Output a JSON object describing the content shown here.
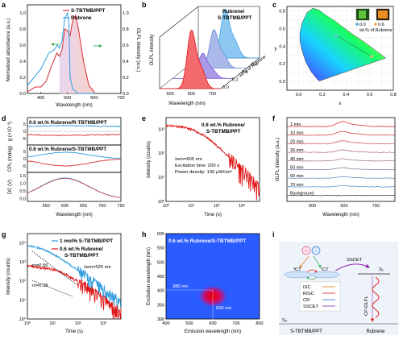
{
  "panels": {
    "a": {
      "label": "a",
      "legend": [
        "S-TBTMB/PPT",
        "Rubrene"
      ],
      "ylabel_left": "Normalized absorbance (a.u.)",
      "ylabel_right": "OLPL intensity (a.u.)",
      "xlabel": "Wavelength (nm)",
      "xticks": [
        "400",
        "500",
        "600",
        "700"
      ],
      "yticks": [
        "0.0",
        "0.2",
        "0.4",
        "0.6",
        "0.8",
        "1.0"
      ]
    },
    "b": {
      "label": "b",
      "title": "Rubrene/\nS-TBTMB/PPT",
      "ylabel": "OLPL intensity",
      "xlabel": "Wavelength (nm)",
      "xticks": [
        "500",
        "600",
        "700"
      ],
      "depth_ticks": [
        "0.0",
        "0.2",
        "0.4",
        "0.6"
      ],
      "depth_label": "wt.% of Rubrene"
    },
    "c": {
      "label": "c",
      "xlabel": "x",
      "ylabel": "y",
      "xticks": [
        "0.0",
        "0.2",
        "0.4",
        "0.6",
        "0.8"
      ],
      "yticks": [
        "0.0",
        "0.2",
        "0.4",
        "0.6",
        "0.8"
      ],
      "inset": [
        "0.0",
        "0.6"
      ],
      "inset_label": "wt.% of Rubrene"
    },
    "d": {
      "label": "d",
      "legend_top": "0.6 wt.% Rubrene/R-TBTMB/PPT",
      "legend_mid": "0.6 wt.% Rubrene/S-TBTMB/PPT",
      "ylabel_top": "g (×10⁻³)",
      "ylabel_mid": "CPL (mdeg)",
      "ylabel_bot": "DC (V)",
      "yticks_top": [
        "5",
        "0",
        "-5"
      ],
      "yticks_mid": [
        "5",
        "0",
        "-5"
      ],
      "yticks_bot": [
        "1.5",
        "1.0",
        "0.5",
        "0.0"
      ],
      "xticks": [
        "550",
        "600",
        "650",
        "700",
        "750"
      ],
      "xlabel": "Wavelength (nm)"
    },
    "e": {
      "label": "e",
      "legend": "0.6 wt.% Rubrene/\nS-TBTMB/PPT",
      "annotations": [
        "λem=600 nm",
        "Excitation time: 200 s",
        "Power density: 136 μW/cm²"
      ],
      "ylabel": "Intensity (counts)",
      "xlabel": "Time (s)",
      "yticks": [
        "10⁰",
        "10¹",
        "10²",
        "10³"
      ],
      "xticks": [
        "10⁰",
        "10¹",
        "10²",
        "10³"
      ]
    },
    "f": {
      "label": "f",
      "traces": [
        "1 min",
        "10 min",
        "20 min",
        "30 min",
        "40 min",
        "50 min",
        "60 min",
        "70 min",
        "Background"
      ],
      "ylabel": "OLPL intensity (a.u.)",
      "xlabel": "Wavelength (nm)",
      "xticks": [
        "500",
        "600",
        "700"
      ]
    },
    "g": {
      "label": "g",
      "legend": [
        "1 mol% S-TBTMB/PPT",
        "0.6 wt.% Rubrene/\nS-TBTMB/PPT"
      ],
      "annotations": [
        "m=0.56",
        "m=0.38",
        "λem=525 nm"
      ],
      "ylabel": "Intensity (counts)",
      "xlabel": "Time (s)",
      "yticks": [
        "10⁰",
        "10¹",
        "10²",
        "10³",
        "10⁴"
      ],
      "xticks": [
        "10⁰",
        "10¹",
        "10²",
        "10³"
      ]
    },
    "h": {
      "label": "h",
      "title": "0.6 wt.% Rubrene/S-TBTMB/PPT",
      "ylabel": "Excitation wavelength (nm)",
      "xlabel": "Emission wavelength (nm)",
      "xticks": [
        "400",
        "500",
        "600",
        "700",
        "800"
      ],
      "yticks": [
        "300",
        "350",
        "400",
        "450",
        "500",
        "550",
        "600"
      ],
      "annotations": [
        "380 nm",
        "600 nm"
      ]
    },
    "i": {
      "label": "i",
      "states": [
        "¹CT",
        "³CT",
        "S₁",
        "S₀"
      ],
      "arrow_label": "SSCET",
      "legend": [
        "ISC",
        "RISC",
        "CR",
        "SSCET"
      ],
      "emission_label": "CP-OLPL",
      "bottom": [
        "S-TBTMB/PPT",
        "Rubrene"
      ],
      "ion_plus": "+",
      "ion_minus": "−"
    }
  },
  "chart_data": [
    {
      "panel": "a",
      "type": "line",
      "xlim": [
        350,
        700
      ],
      "series": [
        {
          "name": "S-TBTMB/PPT",
          "x": [
            350,
            400,
            430,
            450,
            462,
            470,
            480,
            490,
            500,
            505,
            510,
            520,
            540,
            560,
            580,
            600
          ],
          "values": [
            0.1,
            0.3,
            0.5,
            0.54,
            0.6,
            0.56,
            0.66,
            0.93,
            1.0,
            0.9,
            0.2,
            0.05,
            0.0,
            0.0,
            0.0,
            0.0
          ]
        },
        {
          "name": "Rubrene",
          "x": [
            350,
            380,
            400,
            420,
            440,
            460,
            470,
            480,
            490,
            500,
            510,
            520,
            530,
            540,
            560,
            580,
            600
          ],
          "values": [
            0.02,
            0.08,
            0.08,
            0.15,
            0.34,
            0.5,
            0.46,
            0.55,
            0.8,
            0.78,
            0.72,
            0.92,
            0.97,
            0.82,
            0.4,
            0.1,
            0.02
          ]
        }
      ]
    },
    {
      "panel": "e",
      "type": "line",
      "series": [
        {
          "name": "0.6 wt.% Rubrene/S-TBTMB/PPT"
        }
      ],
      "xlim": [
        1,
        5000
      ],
      "ylim": [
        1,
        3000
      ]
    },
    {
      "panel": "g",
      "type": "line",
      "series": [
        {
          "name": "1 mol% S-TBTMB/PPT"
        },
        {
          "name": "0.6 wt.% Rubrene/S-TBTMB/PPT"
        }
      ],
      "xlim": [
        1,
        5000
      ],
      "ylim": [
        1,
        30000
      ]
    },
    {
      "panel": "h",
      "type": "heatmap",
      "xlim": [
        400,
        800
      ],
      "ylim": [
        300,
        600
      ],
      "peak": [
        600,
        380
      ]
    }
  ]
}
